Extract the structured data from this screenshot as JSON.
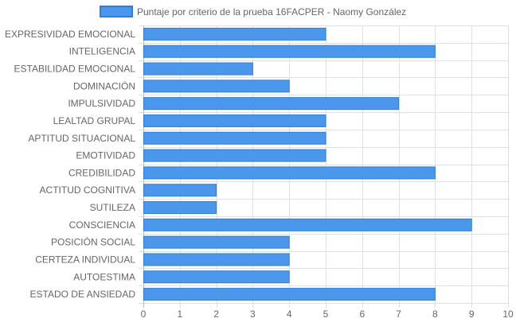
{
  "chart_data": {
    "type": "bar",
    "orientation": "horizontal",
    "title": "",
    "xlabel": "",
    "ylabel": "",
    "categories": [
      "EXPRESIVIDAD EMOCIONAL",
      "INTELIGENCIA",
      "ESTABILIDAD EMOCIONAL",
      "DOMINACIÓN",
      "IMPULSIVIDAD",
      "LEALTAD GRUPAL",
      "APTITUD SITUACIONAL",
      "EMOTIVIDAD",
      "CREDIBILIDAD",
      "ACTITUD COGNITIVA",
      "SUTILEZA",
      "CONSCIENCIA",
      "POSICIÓN SOCIAL",
      "CERTEZA INDIVIDUAL",
      "AUTOESTIMA",
      "ESTADO DE ANSIEDAD"
    ],
    "series": [
      {
        "name": "Puntaje por criterio de la prueba 16FACPER - Naomy González",
        "values": [
          5,
          8,
          3,
          4,
          7,
          5,
          5,
          5,
          8,
          2,
          2,
          9,
          4,
          4,
          4,
          8
        ]
      }
    ],
    "xlim": [
      0,
      10
    ],
    "x_ticks": [
      "0",
      "1",
      "2",
      "3",
      "4",
      "5",
      "6",
      "7",
      "8",
      "9",
      "10"
    ],
    "grid": true,
    "legend_position": "top",
    "colors": {
      "bar_fill": "#4a97ec",
      "bar_border": "#2f7fd8",
      "grid": "#e0e0e0",
      "text": "#666666"
    }
  }
}
